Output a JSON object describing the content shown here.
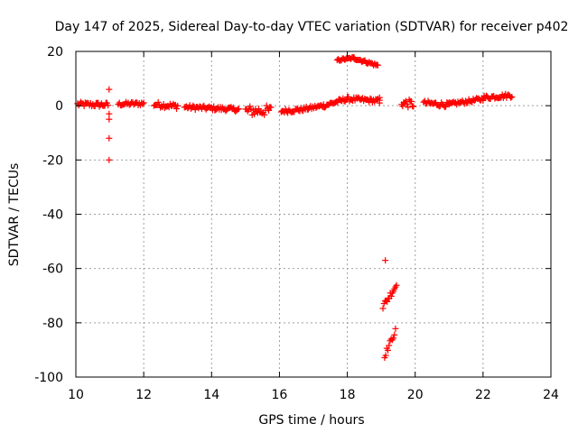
{
  "chart_data": {
    "type": "scatter",
    "title": "Day 147 of 2025, Sidereal Day-to-day VTEC variation (SDTVAR) for receiver p402",
    "xlabel": "GPS time / hours",
    "ylabel": "SDTVAR / TECUs",
    "xlim": [
      10,
      24
    ],
    "ylim": [
      -100,
      20
    ],
    "xticks": [
      "10",
      "12",
      "14",
      "16",
      "18",
      "20",
      "22",
      "24"
    ],
    "yticks": [
      "20",
      "0",
      "-20",
      "-40",
      "-60",
      "-80",
      "-100"
    ],
    "grid": true,
    "marker": "plus",
    "color": "#ff0000",
    "segments": [
      {
        "x": [
          10.05,
          10.95
        ],
        "y": [
          0.5,
          0.3
        ],
        "jitter": 0.9
      },
      {
        "x": [
          11.25,
          12.0
        ],
        "y": [
          0.6,
          0.8
        ],
        "jitter": 0.7
      },
      {
        "x": [
          12.3,
          13.0
        ],
        "y": [
          0.5,
          -0.2
        ],
        "jitter": 1.0
      },
      {
        "x": [
          13.2,
          14.8
        ],
        "y": [
          -0.5,
          -1.4
        ],
        "jitter": 0.8
      },
      {
        "x": [
          15.0,
          15.75
        ],
        "y": [
          -2.0,
          -1.8
        ],
        "jitter": 2.0
      },
      {
        "x": [
          16.05,
          16.6
        ],
        "y": [
          -2.0,
          -1.5
        ],
        "jitter": 0.8
      },
      {
        "x": [
          16.6,
          17.3
        ],
        "y": [
          -1.5,
          0.0
        ],
        "jitter": 0.7
      },
      {
        "x": [
          17.3,
          18.0
        ],
        "y": [
          0.0,
          2.5
        ],
        "jitter": 0.8
      },
      {
        "x": [
          18.0,
          18.9
        ],
        "y": [
          2.5,
          1.8
        ],
        "jitter": 0.8
      },
      {
        "x": [
          17.7,
          18.2
        ],
        "y": [
          16.8,
          17.6
        ],
        "jitter": 0.4
      },
      {
        "x": [
          18.2,
          18.9
        ],
        "y": [
          17.5,
          14.8
        ],
        "jitter": 0.5
      },
      {
        "x": [
          19.6,
          19.95
        ],
        "y": [
          1.0,
          0.6
        ],
        "jitter": 1.5
      },
      {
        "x": [
          20.25,
          21.0
        ],
        "y": [
          1.0,
          0.3
        ],
        "jitter": 0.9
      },
      {
        "x": [
          21.0,
          22.0
        ],
        "y": [
          0.5,
          2.5
        ],
        "jitter": 0.7
      },
      {
        "x": [
          22.0,
          22.85
        ],
        "y": [
          3.0,
          3.8
        ],
        "jitter": 0.8
      },
      {
        "x": [
          19.05,
          19.45
        ],
        "y": [
          -74.0,
          -66.0
        ],
        "jitter": 1.2
      },
      {
        "x": [
          19.1,
          19.42
        ],
        "y": [
          -92.0,
          -83.0
        ],
        "jitter": 1.0
      }
    ],
    "points": [
      {
        "x": 18.95,
        "y": 2.0
      },
      {
        "x": 18.95,
        "y": 3.0
      },
      {
        "x": 18.95,
        "y": 1.0
      },
      {
        "x": 10.98,
        "y": 6.0
      },
      {
        "x": 10.98,
        "y": -3.0
      },
      {
        "x": 10.98,
        "y": -5.0
      },
      {
        "x": 10.98,
        "y": -12.0
      },
      {
        "x": 10.98,
        "y": -20.0
      },
      {
        "x": 19.12,
        "y": -57.0
      }
    ]
  }
}
